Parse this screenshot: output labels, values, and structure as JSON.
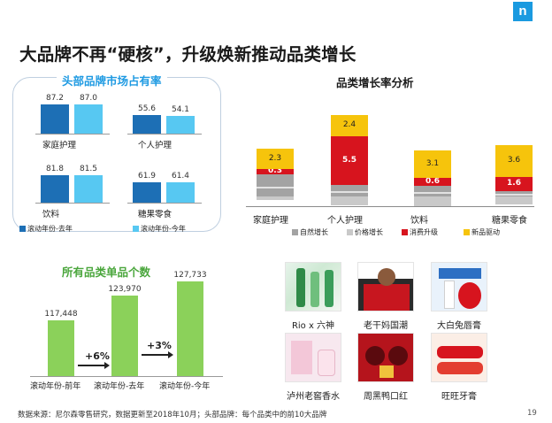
{
  "logo": "n",
  "title": "大品牌不再“硬核”，升级焕新推动品类增长",
  "share_panel": {
    "title": "头部品牌市场占有率",
    "groups": [
      {
        "name": "家庭护理",
        "prev": 87.2,
        "curr": 87.0,
        "prev_label": "87.2",
        "curr_label": "87.0"
      },
      {
        "name": "个人护理",
        "prev": 55.6,
        "curr": 54.1,
        "prev_label": "55.6",
        "curr_label": "54.1"
      },
      {
        "name": "饮料",
        "prev": 81.8,
        "curr": 81.5,
        "prev_label": "81.8",
        "curr_label": "81.5"
      },
      {
        "name": "糖果零食",
        "prev": 61.9,
        "curr": 61.4,
        "prev_label": "61.9",
        "curr_label": "61.4"
      }
    ],
    "legend_prev": "滚动年份-去年",
    "legend_curr": "滚动年份-今年",
    "colors": {
      "prev": "#57c8f2",
      "curr": "#1d6fb5"
    }
  },
  "sku_panel": {
    "title": "所有品类单品个数",
    "bars": [
      {
        "label": "滚动年份-前年",
        "value": 117448,
        "value_label": "117,448"
      },
      {
        "label": "滚动年份-去年",
        "value": 123970,
        "value_label": "123,970"
      },
      {
        "label": "滚动年份-今年",
        "value": 127733,
        "value_label": "127,733"
      }
    ],
    "growth": [
      "+6%",
      "+3%"
    ],
    "color": "#8bd15a"
  },
  "chart_data": {
    "type": "bar",
    "stacked": true,
    "title": "品类增长率分析",
    "categories": [
      "家庭护理",
      "个人护理",
      "饮料",
      "糖果零食"
    ],
    "series": [
      {
        "name": "自然增长",
        "color": "#a3a3a3",
        "values": [
          null,
          null,
          null,
          null
        ]
      },
      {
        "name": "价格增长",
        "color": "#c9c9c9",
        "values": [
          null,
          null,
          null,
          null
        ]
      },
      {
        "name": "消费升级",
        "color": "#d7141e",
        "values": [
          0.3,
          5.5,
          0.6,
          1.6
        ]
      },
      {
        "name": "新品驱动",
        "color": "#f6c40c",
        "values": [
          2.3,
          2.4,
          3.1,
          3.6
        ]
      }
    ],
    "labels": {
      "消费升级": [
        "0.3",
        "5.5",
        "0.6",
        "1.6"
      ],
      "新品驱动": [
        "2.3",
        "2.4",
        "3.1",
        "3.6"
      ]
    }
  },
  "products": [
    {
      "label": "Rio x 六神"
    },
    {
      "label": "老干妈国潮"
    },
    {
      "label": "大白兔唇膏"
    },
    {
      "label": "泸州老窖香水"
    },
    {
      "label": "周黑鸭口红"
    },
    {
      "label": "旺旺牙膏"
    }
  ],
  "footer": "数据来源：尼尔森零售研究，数据更新至2018年10月；头部品牌：每个品类中的前10大品牌",
  "page_number": "19"
}
